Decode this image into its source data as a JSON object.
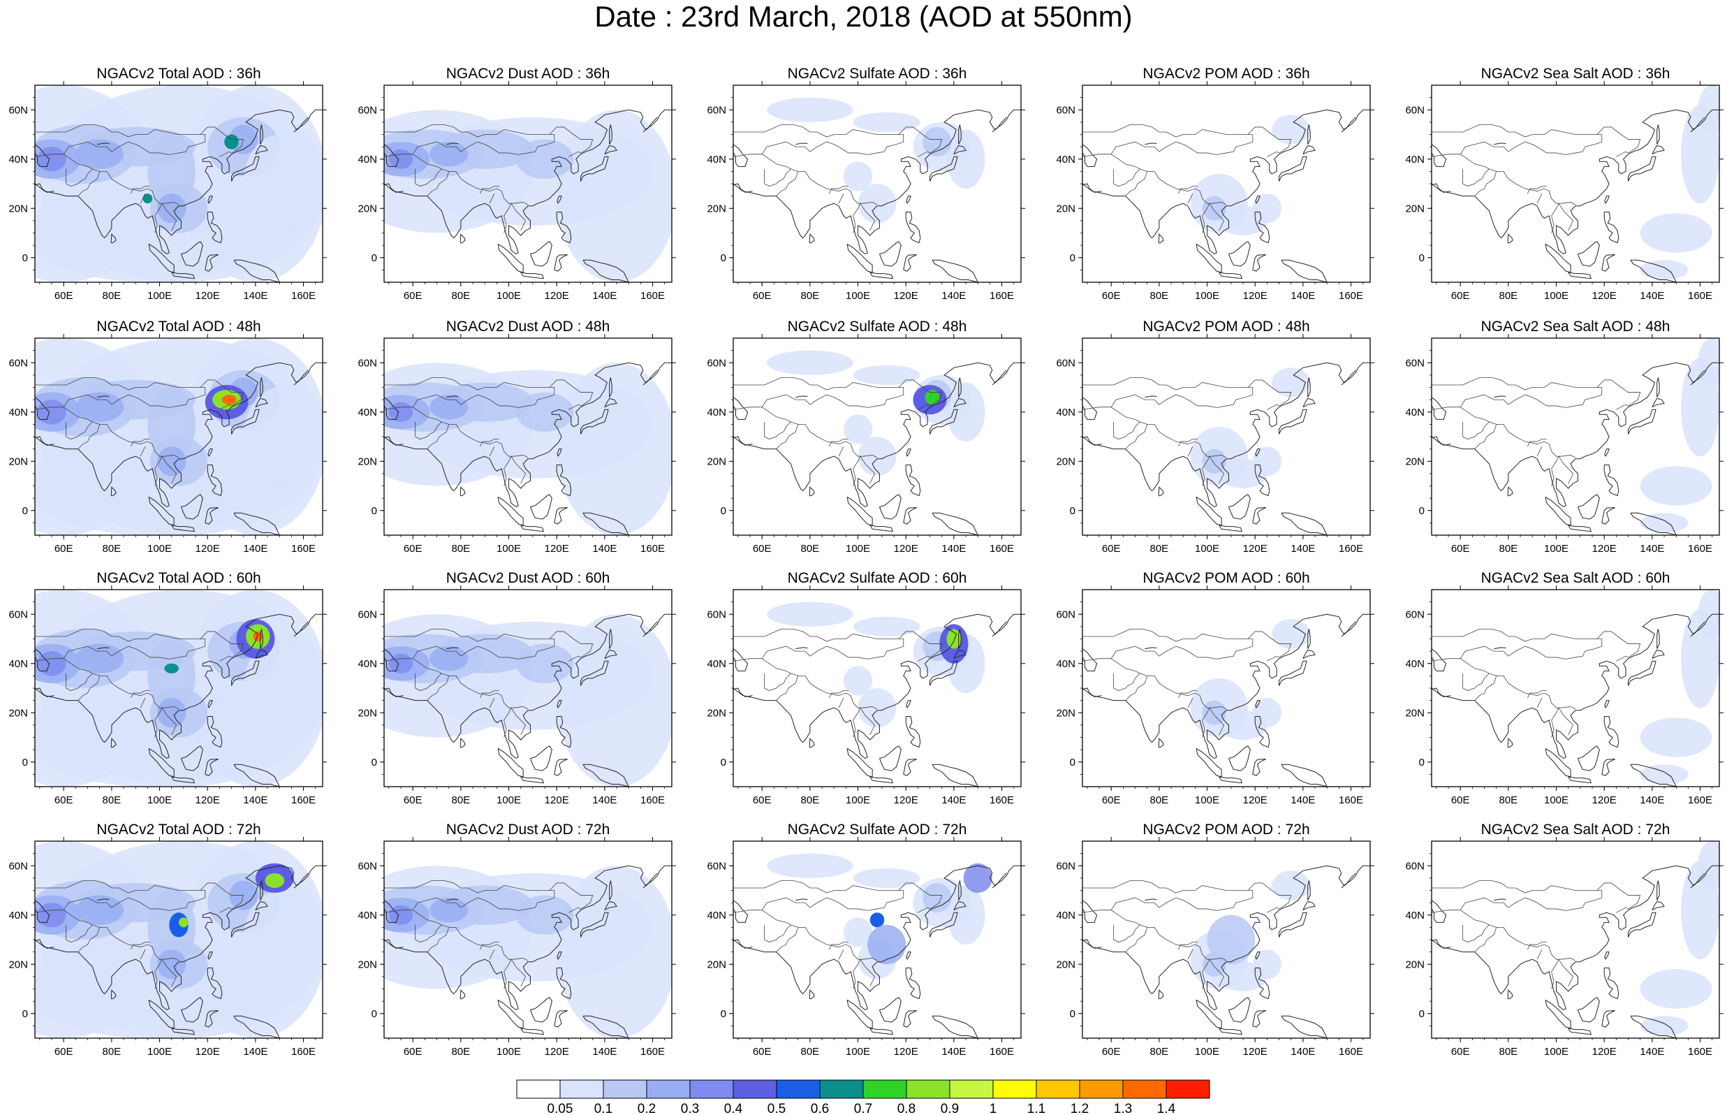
{
  "title": "Date : 23rd March, 2018 (AOD at 550nm)",
  "panels": [
    {
      "title": "NGACv2 Total AOD : 36h",
      "species": "total"
    },
    {
      "title": "NGACv2 Dust AOD : 36h",
      "species": "dust"
    },
    {
      "title": "NGACv2 Sulfate AOD : 36h",
      "species": "sulfate"
    },
    {
      "title": "NGACv2 POM AOD : 36h",
      "species": "pom"
    },
    {
      "title": "NGACv2 Sea Salt AOD : 36h",
      "species": "seasalt"
    },
    {
      "title": "NGACv2 Total AOD : 48h",
      "species": "total"
    },
    {
      "title": "NGACv2 Dust AOD : 48h",
      "species": "dust"
    },
    {
      "title": "NGACv2 Sulfate AOD : 48h",
      "species": "sulfate"
    },
    {
      "title": "NGACv2 POM AOD : 48h",
      "species": "pom"
    },
    {
      "title": "NGACv2 Sea Salt AOD : 48h",
      "species": "seasalt"
    },
    {
      "title": "NGACv2 Total AOD : 60h",
      "species": "total"
    },
    {
      "title": "NGACv2 Dust AOD : 60h",
      "species": "dust"
    },
    {
      "title": "NGACv2 Sulfate AOD : 60h",
      "species": "sulfate"
    },
    {
      "title": "NGACv2 POM AOD : 60h",
      "species": "pom"
    },
    {
      "title": "NGACv2 Sea Salt AOD : 60h",
      "species": "seasalt"
    },
    {
      "title": "NGACv2 Total AOD : 72h",
      "species": "total"
    },
    {
      "title": "NGACv2 Dust AOD : 72h",
      "species": "dust"
    },
    {
      "title": "NGACv2 Sulfate AOD : 72h",
      "species": "sulfate"
    },
    {
      "title": "NGACv2 POM AOD : 72h",
      "species": "pom"
    },
    {
      "title": "NGACv2 Sea Salt  AOD : 72h",
      "species": "seasalt"
    }
  ],
  "map": {
    "lon_range": [
      48,
      168
    ],
    "lat_range": [
      -10,
      70
    ],
    "lon_ticks": [
      "60E",
      "80E",
      "100E",
      "120E",
      "140E",
      "160E"
    ],
    "lon_tick_values": [
      60,
      80,
      100,
      120,
      140,
      160
    ],
    "lat_ticks": [
      "60N",
      "40N",
      "20N",
      "0"
    ],
    "lat_tick_values": [
      60,
      40,
      20,
      0
    ]
  },
  "colorbar": {
    "labels": [
      "0.05",
      "0.1",
      "0.2",
      "0.3",
      "0.4",
      "0.5",
      "0.6",
      "0.7",
      "0.8",
      "0.9",
      "1",
      "1.1",
      "1.2",
      "1.3",
      "1.4"
    ],
    "colors": [
      "#ffffff",
      "#d9e3fb",
      "#b8c9f5",
      "#98aef2",
      "#7f8ced",
      "#5c5fe3",
      "#1a5ee6",
      "#0a8f8c",
      "#2fd327",
      "#8ae22a",
      "#c6f542",
      "#ffff00",
      "#ffc800",
      "#ff9a00",
      "#ff6a00",
      "#ff1e00"
    ]
  }
}
